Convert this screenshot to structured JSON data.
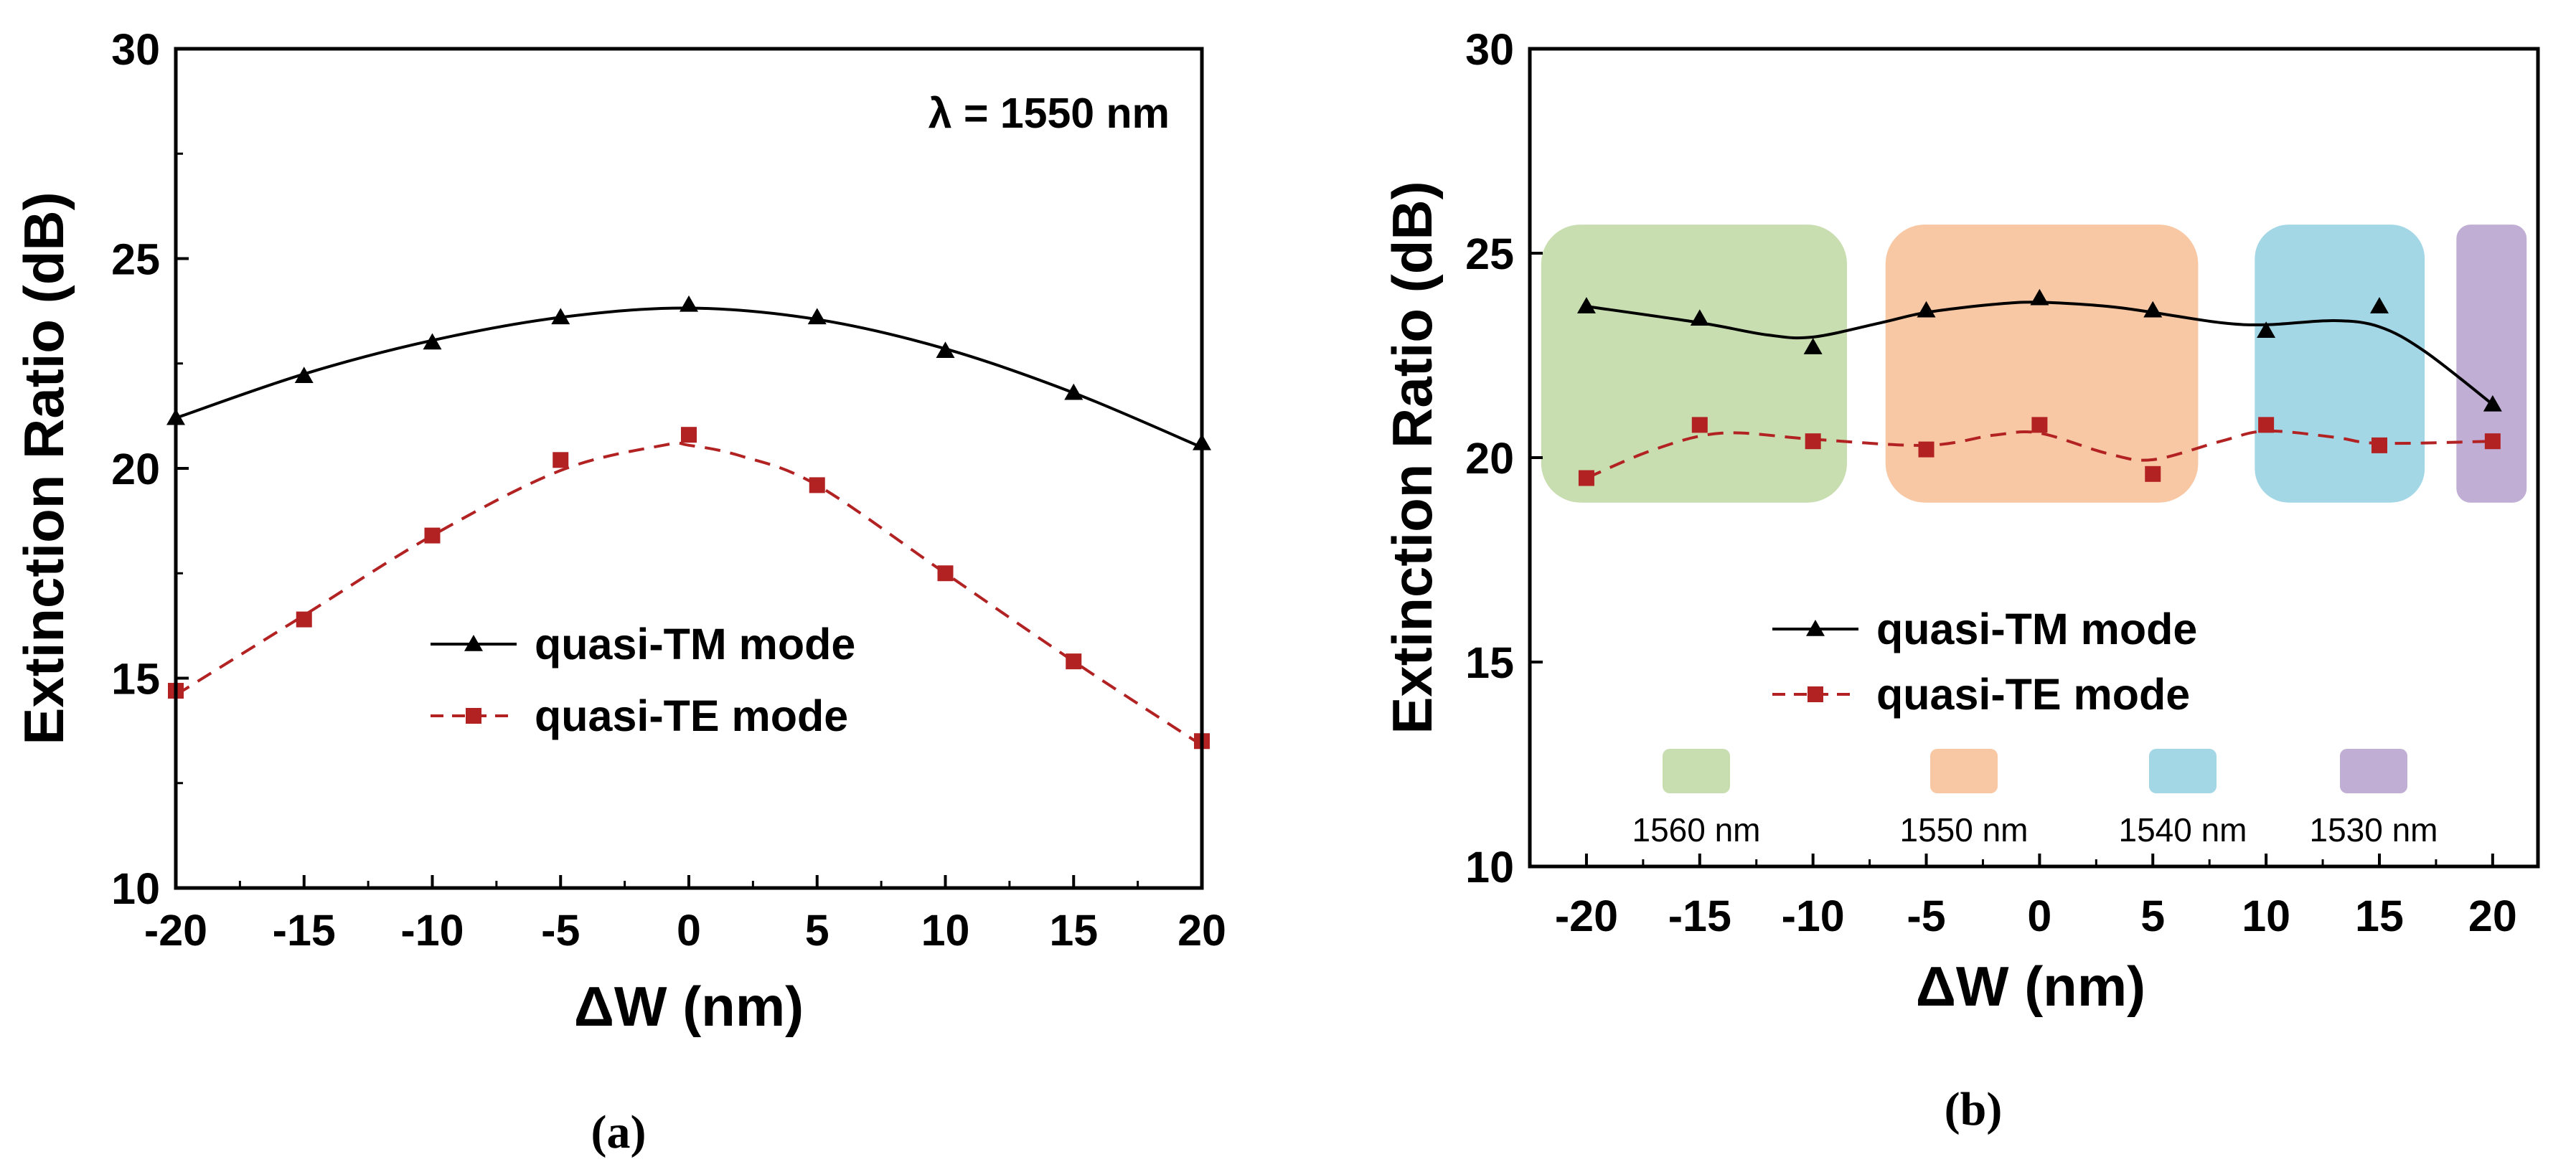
{
  "chart_data": [
    {
      "panel_label": "(a)",
      "type": "line",
      "xlabel": "ΔW (nm)",
      "ylabel": "Extinction Ratio (dB)",
      "xlim": [
        -20,
        20
      ],
      "ylim": [
        10,
        30
      ],
      "xticks": [
        -20,
        -15,
        -10,
        -5,
        0,
        5,
        10,
        15,
        20
      ],
      "yticks": [
        10,
        15,
        20,
        25,
        30
      ],
      "annotation": "λ = 1550 nm",
      "legend_position": "center",
      "series": [
        {
          "name": "quasi-TM mode",
          "color": "#000000",
          "marker": "triangle",
          "line": "solid",
          "x": [
            -20,
            -15,
            -10,
            -5,
            0,
            5,
            10,
            15,
            20
          ],
          "y": [
            21.2,
            22.2,
            23.0,
            23.6,
            23.9,
            23.6,
            22.8,
            21.8,
            20.6
          ],
          "fit": [
            [
              -20,
              21.2
            ],
            [
              -15,
              22.25
            ],
            [
              -10,
              23.05
            ],
            [
              -5,
              23.6
            ],
            [
              0,
              23.82
            ],
            [
              5,
              23.55
            ],
            [
              10,
              22.85
            ],
            [
              15,
              21.8
            ],
            [
              20,
              20.5
            ]
          ]
        },
        {
          "name": "quasi-TE mode",
          "color": "#b22222",
          "marker": "square",
          "line": "dashed",
          "x": [
            -20,
            -15,
            -10,
            -5,
            0,
            5,
            10,
            15,
            20
          ],
          "y": [
            14.7,
            16.4,
            18.4,
            20.2,
            20.8,
            19.6,
            17.5,
            15.4,
            13.5
          ],
          "fit": [
            [
              -20,
              14.6
            ],
            [
              -15,
              16.5
            ],
            [
              -10,
              18.4
            ],
            [
              -5,
              19.95
            ],
            [
              -1,
              20.55
            ],
            [
              0,
              20.55
            ],
            [
              2,
              20.3
            ],
            [
              5,
              19.6
            ],
            [
              10,
              17.5
            ],
            [
              15,
              15.4
            ],
            [
              20,
              13.4
            ]
          ]
        }
      ]
    },
    {
      "panel_label": "(b)",
      "type": "line",
      "xlabel": "ΔW (nm)",
      "ylabel": "Extinction Ratio (dB)",
      "xlim": [
        -22.5,
        22
      ],
      "ylim": [
        10,
        30
      ],
      "xticks": [
        -20,
        -15,
        -10,
        -5,
        0,
        5,
        10,
        15,
        20
      ],
      "yticks": [
        10,
        15,
        20,
        25,
        30
      ],
      "legend_position": "lower-center",
      "bands": [
        {
          "label": "1560 nm",
          "color": "#a8c97f",
          "x_range": [
            -22,
            -8.5
          ],
          "y_range": [
            18.9,
            25.7
          ]
        },
        {
          "label": "1550 nm",
          "color": "#f4a46a",
          "x_range": [
            -6.8,
            7
          ],
          "y_range": [
            18.9,
            25.7
          ]
        },
        {
          "label": "1540 nm",
          "color": "#6bbfd6",
          "x_range": [
            9.5,
            17
          ],
          "y_range": [
            18.9,
            25.7
          ]
        },
        {
          "label": "1530 nm",
          "color": "#9b7cba",
          "x_range": [
            18.4,
            21.5
          ],
          "y_range": [
            18.9,
            25.7
          ]
        }
      ],
      "series": [
        {
          "name": "quasi-TM mode",
          "color": "#000000",
          "marker": "triangle",
          "line": "solid",
          "x": [
            -20,
            -15,
            -10,
            -5,
            0,
            5,
            10,
            15,
            20
          ],
          "y": [
            23.7,
            23.4,
            22.7,
            23.6,
            23.9,
            23.6,
            23.1,
            23.7,
            21.3
          ],
          "fit": [
            [
              -20,
              23.7
            ],
            [
              -15,
              23.3
            ],
            [
              -12,
              23.0
            ],
            [
              -10,
              22.95
            ],
            [
              -7,
              23.3
            ],
            [
              -5,
              23.55
            ],
            [
              -2,
              23.75
            ],
            [
              0,
              23.8
            ],
            [
              3,
              23.7
            ],
            [
              5,
              23.55
            ],
            [
              8,
              23.3
            ],
            [
              10,
              23.25
            ],
            [
              13,
              23.35
            ],
            [
              15,
              23.2
            ],
            [
              17,
              22.6
            ],
            [
              20,
              21.3
            ]
          ]
        },
        {
          "name": "quasi-TE mode",
          "color": "#b22222",
          "marker": "square",
          "line": "dashed",
          "x": [
            -20,
            -15,
            -10,
            -5,
            0,
            5,
            10,
            15,
            20
          ],
          "y": [
            19.5,
            20.8,
            20.4,
            20.2,
            20.8,
            19.6,
            20.8,
            20.3,
            20.4
          ],
          "fit": [
            [
              -20,
              19.5
            ],
            [
              -17,
              20.2
            ],
            [
              -14,
              20.6
            ],
            [
              -10,
              20.45
            ],
            [
              -5,
              20.3
            ],
            [
              -2,
              20.55
            ],
            [
              0,
              20.6
            ],
            [
              3,
              20.1
            ],
            [
              5,
              19.95
            ],
            [
              8,
              20.4
            ],
            [
              10,
              20.65
            ],
            [
              13,
              20.5
            ],
            [
              15,
              20.35
            ],
            [
              20,
              20.4
            ]
          ]
        }
      ]
    }
  ]
}
